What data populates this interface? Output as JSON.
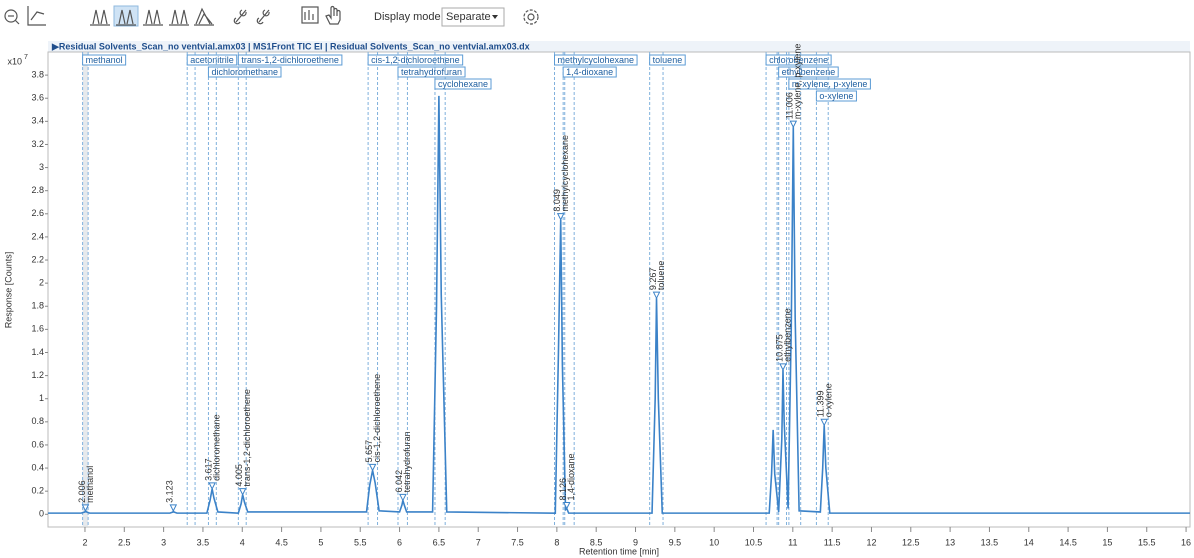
{
  "toolbar": {
    "display_mode_label": "Display mode",
    "display_mode_value": "Separate"
  },
  "chart_data": {
    "type": "line",
    "title": "▶Residual Solvents_Scan_no ventvial.amx03 | MS1Front TIC EI | Residual Solvents_Scan_no ventvial.amx03.dx",
    "x_label": "Retention time [min]",
    "y_label": "Response [Counts]",
    "y_multiplier": "x10",
    "y_multiplier_exp": "7",
    "xlim": [
      1.53,
      16.05
    ],
    "ylim": [
      -0.11,
      4.0
    ],
    "xticks": [
      2,
      2.5,
      3,
      3.5,
      4,
      4.5,
      5,
      5.5,
      6,
      6.5,
      7,
      7.5,
      8,
      8.5,
      9,
      9.5,
      10,
      10.5,
      11,
      11.5,
      12,
      12.5,
      13,
      13.5,
      14,
      14.5,
      15,
      15.5,
      16
    ],
    "yticks": [
      0,
      0.2,
      0.4,
      0.6,
      0.8,
      1,
      1.2,
      1.4,
      1.6,
      1.8,
      2,
      2.2,
      2.4,
      2.6,
      2.8,
      3,
      3.2,
      3.4,
      3.6,
      3.8
    ],
    "grid": false,
    "series": [
      {
        "name": "TIC",
        "color": "#3b82c8",
        "x": [
          1.53,
          1.95,
          2.0,
          2.006,
          2.02,
          2.06,
          3.08,
          3.12,
          3.123,
          3.13,
          3.17,
          3.55,
          3.59,
          3.617,
          3.64,
          3.69,
          3.95,
          3.985,
          4.005,
          4.03,
          4.07,
          5.58,
          5.62,
          5.657,
          5.69,
          5.74,
          6.0,
          6.03,
          6.042,
          6.06,
          6.09,
          6.42,
          6.47,
          6.5,
          6.53,
          6.6,
          7.98,
          8.02,
          8.049,
          8.07,
          8.11,
          8.126,
          8.15,
          9.21,
          9.25,
          9.267,
          9.29,
          9.34,
          10.7,
          10.73,
          10.75,
          10.77,
          10.82,
          10.86,
          10.875,
          10.89,
          10.94,
          10.98,
          11.006,
          11.03,
          11.08,
          11.35,
          11.38,
          11.399,
          11.42,
          11.47,
          16.05
        ],
        "values": [
          0.01,
          0.01,
          0.02,
          0.03,
          0.02,
          0.01,
          0.01,
          0.02,
          0.03,
          0.02,
          0.01,
          0.01,
          0.12,
          0.22,
          0.14,
          0.02,
          0.01,
          0.09,
          0.17,
          0.1,
          0.02,
          0.02,
          0.25,
          0.38,
          0.27,
          0.03,
          0.02,
          0.08,
          0.12,
          0.08,
          0.02,
          0.02,
          1.8,
          3.62,
          1.9,
          0.02,
          0.01,
          1.4,
          2.55,
          1.3,
          0.04,
          0.05,
          0.01,
          0.01,
          1.0,
          1.87,
          1.0,
          0.01,
          0.01,
          0.35,
          0.73,
          0.35,
          0.02,
          0.65,
          1.25,
          0.8,
          0.05,
          1.6,
          3.35,
          1.7,
          0.03,
          0.02,
          0.4,
          0.77,
          0.4,
          0.01,
          0.01
        ]
      }
    ],
    "windows": [
      {
        "name": "methanol",
        "lo": 1.97,
        "hi": 2.04
      },
      {
        "name": "acetonitrile",
        "lo": 3.3,
        "hi": 3.4
      },
      {
        "name": "dichloromethane",
        "lo": 3.57,
        "hi": 3.67
      },
      {
        "name": "trans-1,2-dichloroethene",
        "lo": 3.95,
        "hi": 4.05
      },
      {
        "name": "cis-1,2-dichloroethene",
        "lo": 5.6,
        "hi": 5.72
      },
      {
        "name": "tetrahydrofuran",
        "lo": 5.98,
        "hi": 6.1
      },
      {
        "name": "cyclohexane",
        "lo": 6.45,
        "hi": 6.58
      },
      {
        "name": "methylcyclohexane",
        "lo": 7.97,
        "hi": 8.1
      },
      {
        "name": "1,4-dioxane",
        "lo": 8.08,
        "hi": 8.22
      },
      {
        "name": "toluene",
        "lo": 9.18,
        "hi": 9.35
      },
      {
        "name": "chlorobenzene",
        "lo": 10.66,
        "hi": 10.8
      },
      {
        "name": "ethylbenzene",
        "lo": 10.82,
        "hi": 10.92
      },
      {
        "name": "m-xylene, p-xylene",
        "lo": 10.95,
        "hi": 11.1
      },
      {
        "name": "o-xylene",
        "lo": 11.3,
        "hi": 11.45
      }
    ],
    "peaks": [
      {
        "rt": 2.006,
        "height": 0.03,
        "name": "methanol"
      },
      {
        "rt": 3.123,
        "height": 0.03
      },
      {
        "rt": 3.617,
        "height": 0.22,
        "name": "dichloromethane"
      },
      {
        "rt": 4.005,
        "height": 0.17,
        "name": "trans-1,2-dichloroethene"
      },
      {
        "rt": 5.657,
        "height": 0.38,
        "name": "cis-1,2-dichloroethene"
      },
      {
        "rt": 6.042,
        "height": 0.12,
        "name": "tetrahydrofuran"
      },
      {
        "rt": 8.049,
        "height": 2.55,
        "name": "methylcyclohexane"
      },
      {
        "rt": 8.126,
        "height": 0.05,
        "name": "1,4-dioxane"
      },
      {
        "rt": 9.267,
        "height": 1.87,
        "name": "toluene"
      },
      {
        "rt": 10.875,
        "height": 1.25,
        "name": "ethylbenzene"
      },
      {
        "rt": 11.006,
        "height": 3.35,
        "name": "m-xylene, p-xylene"
      },
      {
        "rt": 11.399,
        "height": 0.77,
        "name": "o-xylene"
      }
    ]
  }
}
